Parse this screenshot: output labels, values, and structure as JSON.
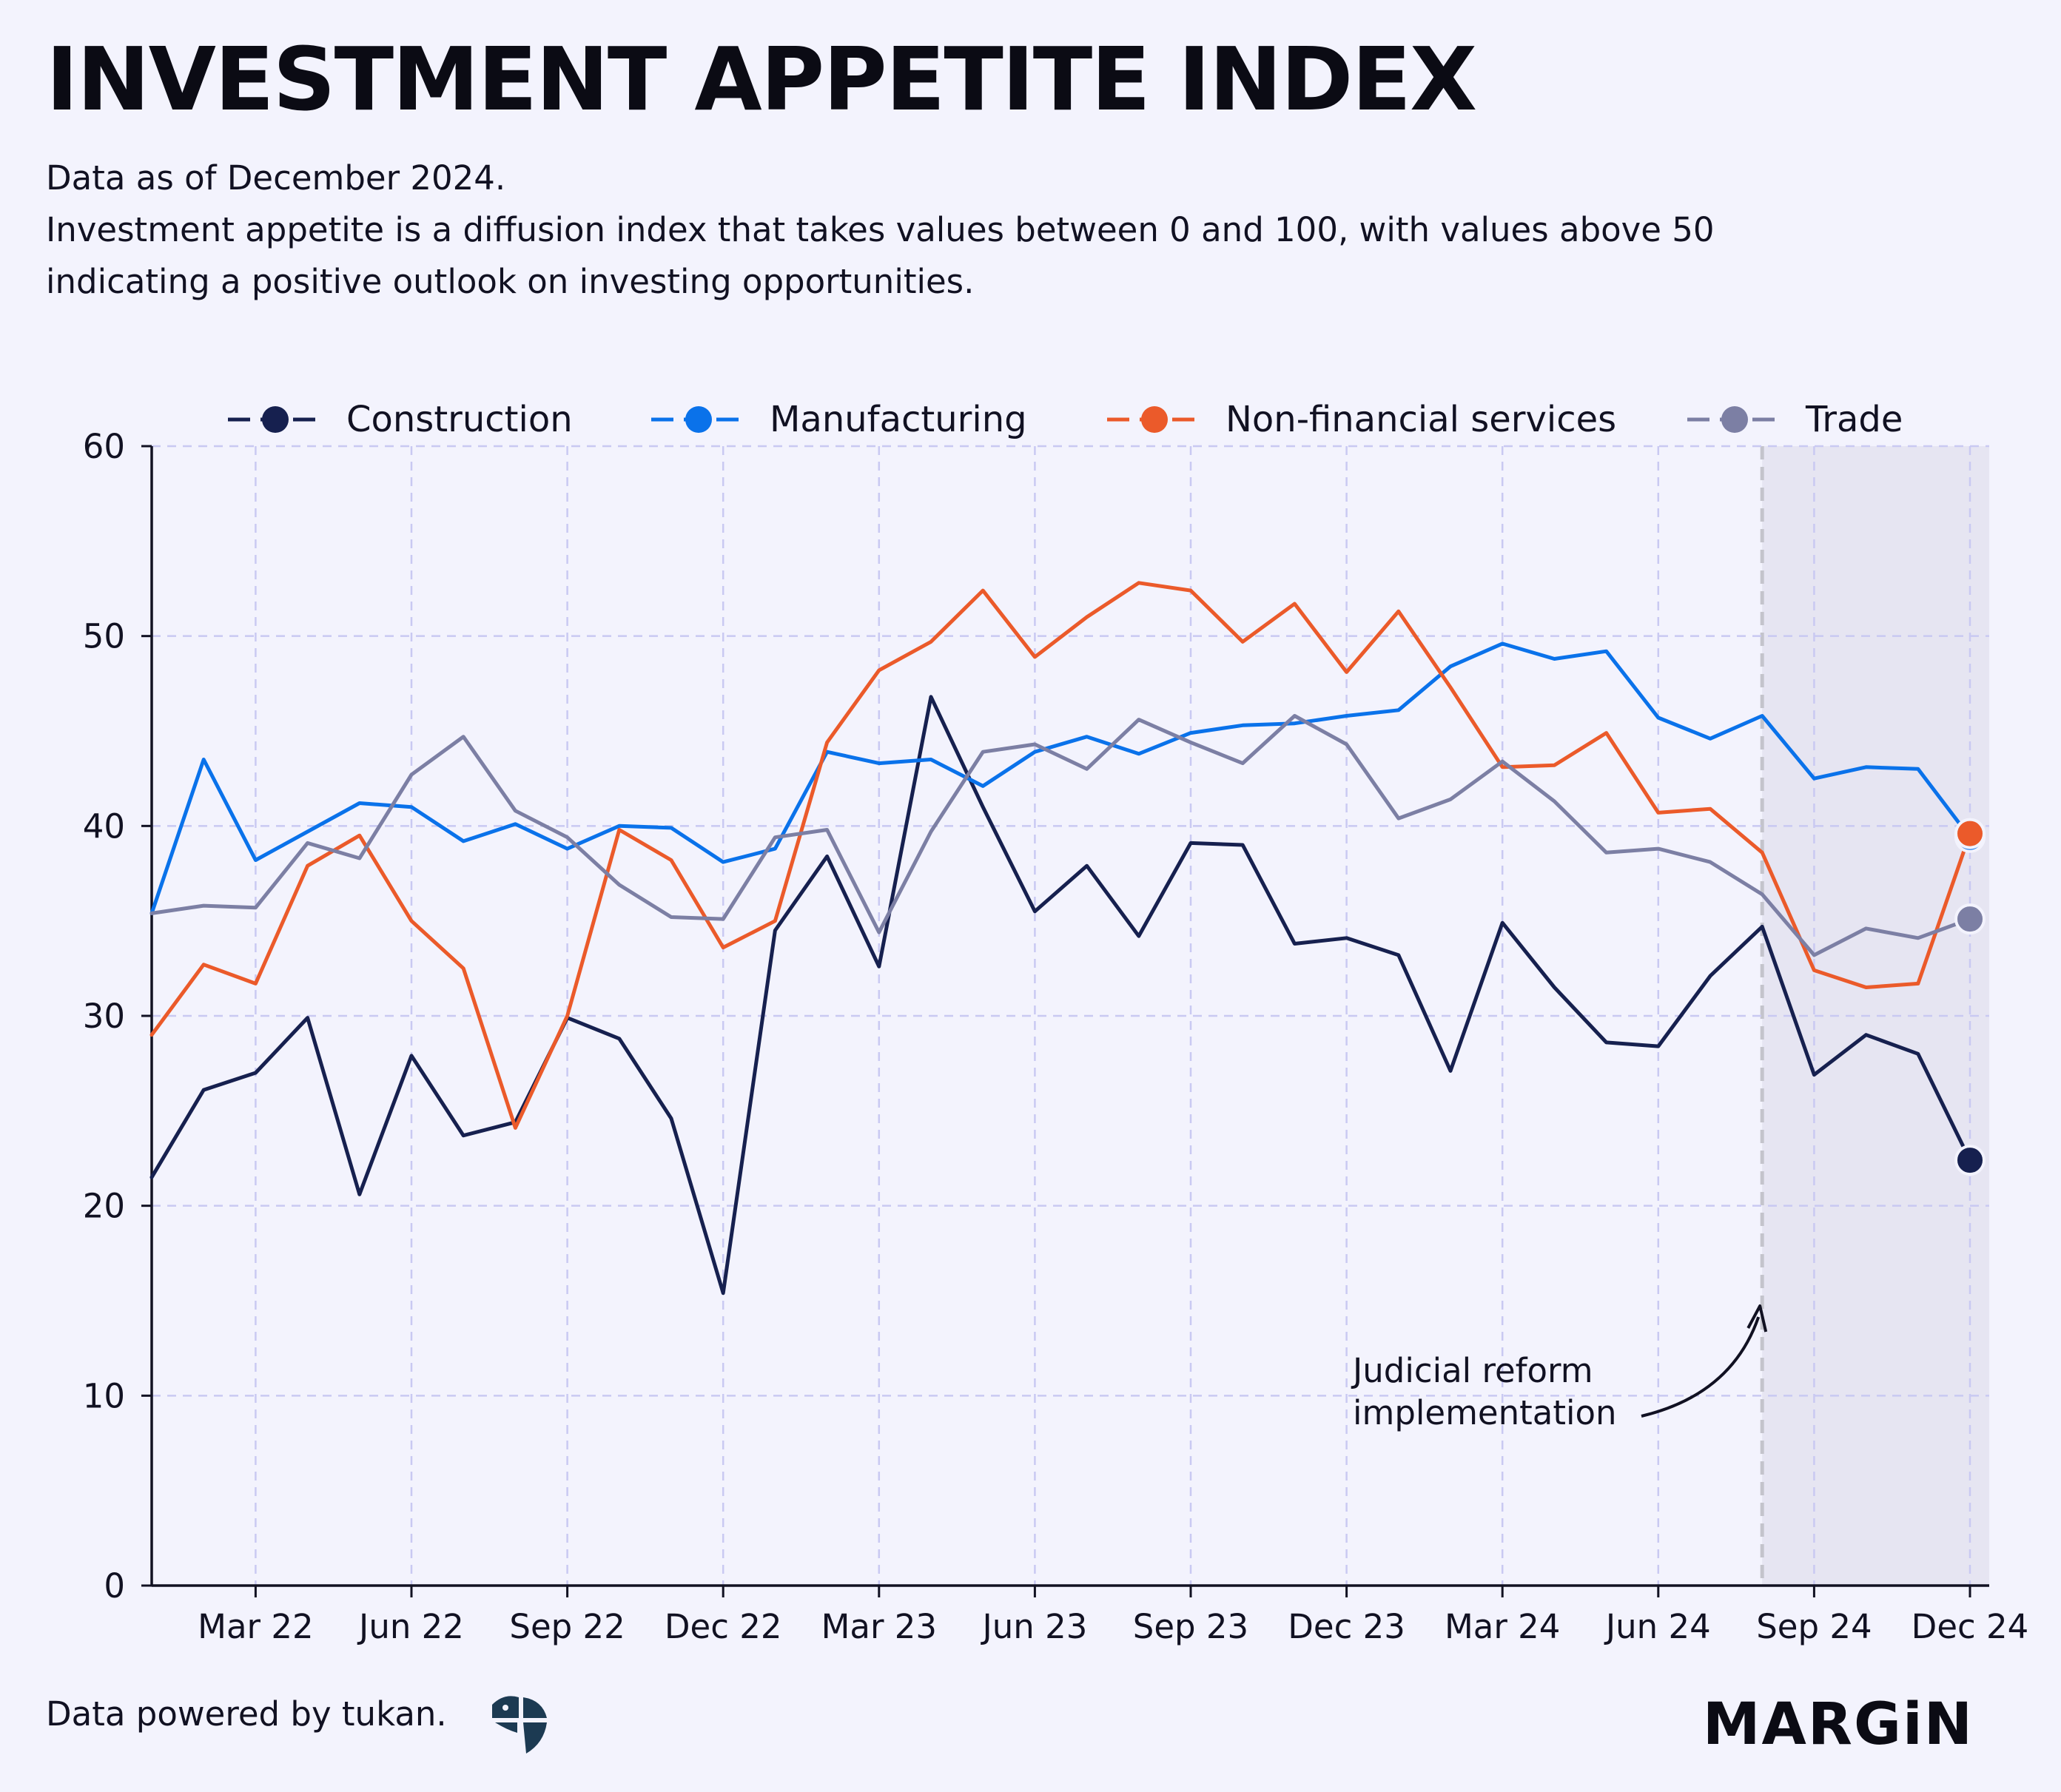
{
  "header": {
    "title": "INVESTMENT APPETITE INDEX",
    "subtitle_lines": [
      "Data as of December 2024.",
      "Investment appetite is a diffusion index that takes values between 0 and 100, with values above 50",
      "indicating a positive outlook on investing opportunities."
    ]
  },
  "footer": {
    "credit": "Data powered by tukan.",
    "brand": "MARGiN"
  },
  "colors": {
    "background": "#f3f3fd",
    "grid": "#c9c9f2",
    "shade": "#e6e5f2",
    "construction": "#16204f",
    "manufacturing": "#0a72ea",
    "nonfinancial": "#eb5a2a",
    "trade": "#7c7fa4"
  },
  "chart_data": {
    "type": "line",
    "title": "INVESTMENT APPETITE INDEX",
    "ylim": [
      0,
      60
    ],
    "yticks": [
      0,
      10,
      20,
      30,
      40,
      50,
      60
    ],
    "x": [
      "Jan 22",
      "Feb 22",
      "Mar 22",
      "Apr 22",
      "May 22",
      "Jun 22",
      "Jul 22",
      "Aug 22",
      "Sep 22",
      "Oct 22",
      "Nov 22",
      "Dec 22",
      "Jan 23",
      "Feb 23",
      "Mar 23",
      "Apr 23",
      "May 23",
      "Jun 23",
      "Jul 23",
      "Aug 23",
      "Sep 23",
      "Oct 23",
      "Nov 23",
      "Dec 23",
      "Jan 24",
      "Feb 24",
      "Mar 24",
      "Apr 24",
      "May 24",
      "Jun 24",
      "Jul 24",
      "Aug 24",
      "Sep 24",
      "Oct 24",
      "Nov 24",
      "Dec 24"
    ],
    "xticks": [
      "Mar 22",
      "Jun 22",
      "Sep 22",
      "Dec 22",
      "Mar 23",
      "Jun 23",
      "Sep 23",
      "Dec 23",
      "Mar 24",
      "Jun 24",
      "Sep 24",
      "Dec 24"
    ],
    "grid": true,
    "legend_position": "top",
    "shaded_range": [
      "Aug 24",
      "Dec 24"
    ],
    "annotation": {
      "lines": [
        "Judicial reform",
        "implementation"
      ],
      "at": "Aug 24"
    },
    "series": [
      {
        "name": "Construction",
        "color": "#16204f",
        "values": [
          21.5,
          26.1,
          27.0,
          29.9,
          20.6,
          27.9,
          23.7,
          24.4,
          29.9,
          28.8,
          24.6,
          15.4,
          34.5,
          38.4,
          32.6,
          46.8,
          41.0,
          35.5,
          37.9,
          34.2,
          39.1,
          39.0,
          33.8,
          34.1,
          33.2,
          27.1,
          34.9,
          31.5,
          28.6,
          28.4,
          32.1,
          34.7,
          26.9,
          29.0,
          28.0,
          22.4
        ]
      },
      {
        "name": "Manufacturing",
        "color": "#0a72ea",
        "values": [
          35.4,
          43.5,
          38.2,
          39.7,
          41.2,
          41.0,
          39.2,
          40.1,
          38.8,
          40.0,
          39.9,
          38.1,
          38.8,
          43.9,
          43.3,
          43.5,
          42.1,
          43.9,
          44.7,
          43.8,
          44.9,
          45.3,
          45.4,
          45.8,
          46.1,
          48.4,
          49.6,
          48.8,
          49.2,
          45.7,
          44.6,
          45.8,
          42.5,
          43.1,
          43.0,
          39.4
        ]
      },
      {
        "name": "Non-financial services",
        "color": "#eb5a2a",
        "values": [
          29.0,
          32.7,
          31.7,
          37.9,
          39.5,
          35.0,
          32.5,
          24.1,
          30.0,
          39.8,
          38.2,
          33.6,
          35.0,
          44.4,
          48.2,
          49.7,
          52.4,
          48.9,
          51.0,
          52.8,
          52.4,
          49.7,
          51.7,
          48.1,
          51.3,
          47.3,
          43.1,
          43.2,
          44.9,
          40.7,
          40.9,
          38.6,
          32.4,
          31.5,
          31.7,
          39.6
        ]
      },
      {
        "name": "Trade",
        "color": "#7c7fa4",
        "values": [
          35.4,
          35.8,
          35.7,
          39.1,
          38.3,
          42.7,
          44.7,
          40.8,
          39.4,
          36.9,
          35.2,
          35.1,
          39.4,
          39.8,
          34.4,
          39.7,
          43.9,
          44.3,
          43.0,
          45.6,
          44.4,
          43.3,
          45.8,
          44.3,
          40.4,
          41.4,
          43.4,
          41.3,
          38.6,
          38.8,
          38.1,
          36.4,
          33.2,
          34.6,
          34.1,
          35.1
        ]
      }
    ]
  }
}
